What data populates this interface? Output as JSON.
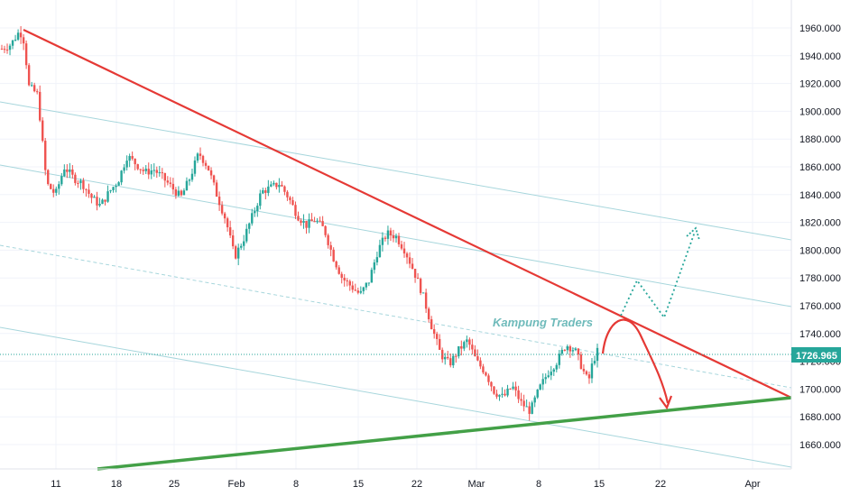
{
  "colors": {
    "background": "#ffffff",
    "up": "#26a69a",
    "down": "#ef5350",
    "resistance": "#e53935",
    "support": "#43a047",
    "channel": "#a7d6dc",
    "projection_up": "#26a69a",
    "projection_down": "#e53935",
    "price_label_bg": "#26a69a"
  },
  "watermark": "Kampung Traders",
  "chart_data": {
    "type": "candlestick",
    "title": "",
    "xlabel": "",
    "ylabel": "",
    "x_ticks": [
      "11",
      "18",
      "25",
      "Feb",
      "8",
      "15",
      "22",
      "Mar",
      "8",
      "15",
      "22",
      "Apr"
    ],
    "y_ticks": [
      "1660.000",
      "1680.000",
      "1700.000",
      "1720.000",
      "1740.000",
      "1760.000",
      "1780.000",
      "1800.000",
      "1820.000",
      "1840.000",
      "1860.000",
      "1880.000",
      "1900.000",
      "1920.000",
      "1940.000",
      "1960.000"
    ],
    "ylim": [
      1645,
      1972
    ],
    "current_price": "1726.965",
    "grid": true,
    "price_path": [
      {
        "t": 0,
        "v": 1945
      },
      {
        "t": 2,
        "v": 1948
      },
      {
        "t": 4,
        "v": 1958
      },
      {
        "t": 5,
        "v": 1950
      },
      {
        "t": 6,
        "v": 1918
      },
      {
        "t": 8,
        "v": 1912
      },
      {
        "t": 9,
        "v": 1880
      },
      {
        "t": 10,
        "v": 1848
      },
      {
        "t": 12,
        "v": 1840
      },
      {
        "t": 14,
        "v": 1860
      },
      {
        "t": 16,
        "v": 1852
      },
      {
        "t": 18,
        "v": 1848
      },
      {
        "t": 20,
        "v": 1838
      },
      {
        "t": 22,
        "v": 1832
      },
      {
        "t": 24,
        "v": 1842
      },
      {
        "t": 26,
        "v": 1850
      },
      {
        "t": 28,
        "v": 1868
      },
      {
        "t": 30,
        "v": 1862
      },
      {
        "t": 32,
        "v": 1856
      },
      {
        "t": 34,
        "v": 1858
      },
      {
        "t": 36,
        "v": 1852
      },
      {
        "t": 38,
        "v": 1845
      },
      {
        "t": 40,
        "v": 1838
      },
      {
        "t": 42,
        "v": 1852
      },
      {
        "t": 44,
        "v": 1870
      },
      {
        "t": 46,
        "v": 1860
      },
      {
        "t": 48,
        "v": 1840
      },
      {
        "t": 50,
        "v": 1822
      },
      {
        "t": 52,
        "v": 1795
      },
      {
        "t": 54,
        "v": 1808
      },
      {
        "t": 56,
        "v": 1825
      },
      {
        "t": 58,
        "v": 1842
      },
      {
        "t": 60,
        "v": 1845
      },
      {
        "t": 62,
        "v": 1848
      },
      {
        "t": 64,
        "v": 1838
      },
      {
        "t": 66,
        "v": 1825
      },
      {
        "t": 68,
        "v": 1818
      },
      {
        "t": 70,
        "v": 1822
      },
      {
        "t": 72,
        "v": 1815
      },
      {
        "t": 74,
        "v": 1795
      },
      {
        "t": 76,
        "v": 1780
      },
      {
        "t": 78,
        "v": 1774
      },
      {
        "t": 80,
        "v": 1768
      },
      {
        "t": 82,
        "v": 1778
      },
      {
        "t": 84,
        "v": 1800
      },
      {
        "t": 86,
        "v": 1812
      },
      {
        "t": 88,
        "v": 1810
      },
      {
        "t": 90,
        "v": 1800
      },
      {
        "t": 92,
        "v": 1785
      },
      {
        "t": 94,
        "v": 1768
      },
      {
        "t": 96,
        "v": 1745
      },
      {
        "t": 98,
        "v": 1725
      },
      {
        "t": 100,
        "v": 1718
      },
      {
        "t": 102,
        "v": 1728
      },
      {
        "t": 104,
        "v": 1735
      },
      {
        "t": 106,
        "v": 1720
      },
      {
        "t": 108,
        "v": 1712
      },
      {
        "t": 110,
        "v": 1698
      },
      {
        "t": 112,
        "v": 1694
      },
      {
        "t": 114,
        "v": 1702
      },
      {
        "t": 116,
        "v": 1690
      },
      {
        "t": 118,
        "v": 1684
      },
      {
        "t": 120,
        "v": 1700
      },
      {
        "t": 122,
        "v": 1712
      },
      {
        "t": 124,
        "v": 1720
      },
      {
        "t": 126,
        "v": 1732
      },
      {
        "t": 128,
        "v": 1728
      },
      {
        "t": 130,
        "v": 1712
      },
      {
        "t": 131,
        "v": 1705
      },
      {
        "t": 132,
        "v": 1720
      },
      {
        "t": 133,
        "v": 1727
      }
    ]
  }
}
